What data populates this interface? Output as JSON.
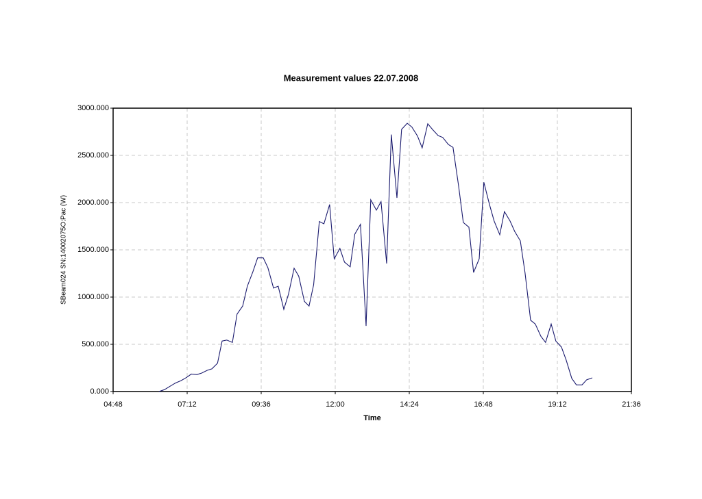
{
  "chart_data": {
    "type": "line",
    "title": "Measurement values 22.07.2008",
    "x_label": "Time",
    "y_label": "SBeam024 SN:14002075O:Pac (W)",
    "color": "#1a1a6e",
    "grid": true,
    "x": [
      "06:17",
      "06:28",
      "06:40",
      "06:49",
      "07:00",
      "07:11",
      "07:20",
      "07:31",
      "07:40",
      "07:51",
      "08:00",
      "08:11",
      "08:20",
      "08:29",
      "08:40",
      "08:49",
      "09:00",
      "09:09",
      "09:20",
      "09:29",
      "09:40",
      "09:49",
      "10:00",
      "10:09",
      "10:20",
      "10:29",
      "10:40",
      "10:49",
      "11:00",
      "11:09",
      "11:18",
      "11:29",
      "11:38",
      "11:49",
      "11:58",
      "12:09",
      "12:18",
      "12:29",
      "12:38",
      "12:49",
      "13:00",
      "13:09",
      "13:20",
      "13:29",
      "13:40",
      "13:49",
      "14:00",
      "14:09",
      "14:20",
      "14:29",
      "14:40",
      "14:49",
      "15:00",
      "15:09",
      "15:20",
      "15:29",
      "15:40",
      "15:49",
      "16:00",
      "16:09",
      "16:20",
      "16:29",
      "16:40",
      "16:49",
      "17:00",
      "17:09",
      "17:20",
      "17:29",
      "17:40",
      "17:49",
      "18:00",
      "18:09",
      "18:20",
      "18:29",
      "18:40",
      "18:49",
      "19:00",
      "19:09",
      "19:20",
      "19:29",
      "19:40",
      "19:49",
      "20:00",
      "20:09",
      "20:20"
    ],
    "values": [
      0,
      20,
      60,
      90,
      115,
      150,
      185,
      180,
      195,
      225,
      240,
      300,
      535,
      545,
      520,
      820,
      905,
      1115,
      1270,
      1415,
      1415,
      1310,
      1095,
      1115,
      870,
      1030,
      1305,
      1220,
      955,
      905,
      1130,
      1800,
      1775,
      1980,
      1405,
      1515,
      1370,
      1320,
      1665,
      1770,
      695,
      2030,
      1920,
      2010,
      1355,
      2720,
      2050,
      2775,
      2840,
      2800,
      2705,
      2580,
      2835,
      2775,
      2710,
      2690,
      2615,
      2585,
      2175,
      1790,
      1740,
      1260,
      1405,
      2215,
      1980,
      1805,
      1660,
      1905,
      1805,
      1695,
      1595,
      1260,
      755,
      715,
      585,
      520,
      715,
      535,
      470,
      335,
      140,
      70,
      70,
      125,
      145
    ],
    "xlim": [
      "04:48",
      "21:36"
    ],
    "xticks": [
      "04:48",
      "07:12",
      "09:36",
      "12:00",
      "14:24",
      "16:48",
      "19:12",
      "21:36"
    ],
    "ylim": [
      0,
      3000
    ],
    "yticks": [
      {
        "value": 0,
        "label": "0.000"
      },
      {
        "value": 500,
        "label": "500.000"
      },
      {
        "value": 1000,
        "label": "1000.000"
      },
      {
        "value": 1500,
        "label": "1500.000"
      },
      {
        "value": 2000,
        "label": "2000.000"
      },
      {
        "value": 2500,
        "label": "2500.000"
      },
      {
        "value": 3000,
        "label": "3000.000"
      }
    ]
  }
}
